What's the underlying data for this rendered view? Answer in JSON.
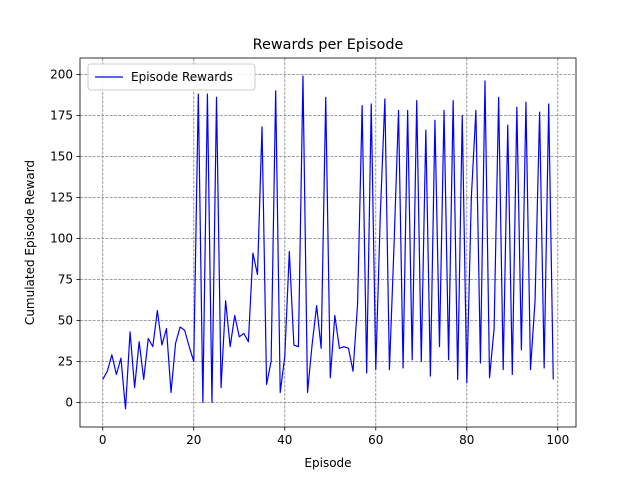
{
  "chart_data": {
    "type": "line",
    "title": "Rewards per Episode",
    "xlabel": "Episode",
    "ylabel": "Cumulated Episode Reward",
    "xlim": [
      -5,
      104
    ],
    "ylim": [
      -15,
      210
    ],
    "xticks": [
      0,
      20,
      40,
      60,
      80,
      100
    ],
    "yticks": [
      0,
      25,
      50,
      75,
      100,
      125,
      150,
      175,
      200
    ],
    "grid": true,
    "legend_position": "top-left",
    "series": [
      {
        "name": "Episode Rewards",
        "color": "#0000ff",
        "x": [
          0,
          1,
          2,
          3,
          4,
          5,
          6,
          7,
          8,
          9,
          10,
          11,
          12,
          13,
          14,
          15,
          16,
          17,
          18,
          19,
          20,
          21,
          22,
          23,
          24,
          25,
          26,
          27,
          28,
          29,
          30,
          31,
          32,
          33,
          34,
          35,
          36,
          37,
          38,
          39,
          40,
          41,
          42,
          43,
          44,
          45,
          46,
          47,
          48,
          49,
          50,
          51,
          52,
          53,
          54,
          55,
          56,
          57,
          58,
          59,
          60,
          61,
          62,
          63,
          64,
          65,
          66,
          67,
          68,
          69,
          70,
          71,
          72,
          73,
          74,
          75,
          76,
          77,
          78,
          79,
          80,
          81,
          82,
          83,
          84,
          85,
          86,
          87,
          88,
          89,
          90,
          91,
          92,
          93,
          94,
          95,
          96,
          97,
          98,
          99
        ],
        "values": [
          14,
          19,
          29,
          17,
          27,
          -4,
          43,
          9,
          37,
          14,
          39,
          34,
          56,
          35,
          45,
          6,
          36,
          46,
          44,
          34,
          25,
          188,
          0,
          188,
          0,
          186,
          9,
          62,
          34,
          53,
          40,
          42,
          37,
          91,
          78,
          168,
          11,
          25,
          190,
          6,
          28,
          92,
          35,
          34,
          199,
          6,
          35,
          59,
          33,
          186,
          15,
          53,
          33,
          34,
          33,
          19,
          60,
          181,
          18,
          182,
          20,
          115,
          185,
          20,
          95,
          178,
          21,
          178,
          26,
          184,
          25,
          166,
          16,
          172,
          34,
          178,
          26,
          184,
          14,
          175,
          12,
          125,
          178,
          24,
          196,
          15,
          45,
          186,
          20,
          169,
          17,
          180,
          32,
          183,
          20,
          62,
          177,
          21,
          182,
          14
        ]
      }
    ]
  }
}
